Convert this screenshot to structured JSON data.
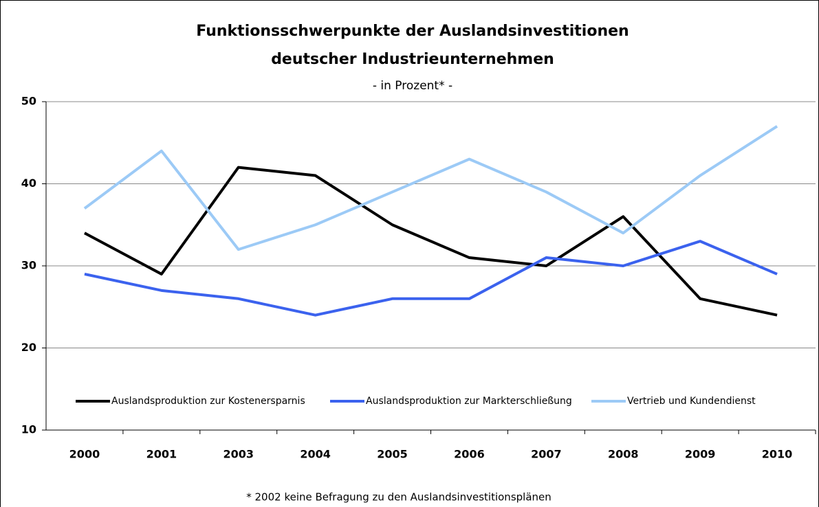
{
  "chart_data": {
    "type": "line",
    "title": [
      "Funktionsschwerpunkte der Auslandsinvestitionen",
      "deutscher Industrieunternehmen"
    ],
    "subtitle": "- in Prozent* -",
    "footnote": "* 2002 keine Befragung zu den Auslandsinvestitionsplänen",
    "categories": [
      "2000",
      "2001",
      "2003",
      "2004",
      "2005",
      "2006",
      "2007",
      "2008",
      "2009",
      "2010"
    ],
    "series": [
      {
        "name": "Auslandsproduktion zur Kostenersparnis",
        "color": "#000000",
        "values": [
          34,
          29,
          42,
          41,
          35,
          31,
          30,
          36,
          26,
          24
        ]
      },
      {
        "name": "Auslandsproduktion zur Markterschließung",
        "color": "#3b62ee",
        "values": [
          29,
          27,
          26,
          24,
          26,
          26,
          31,
          30,
          33,
          29
        ]
      },
      {
        "name": "Vertrieb und Kundendienst",
        "color": "#9ccaf6",
        "values": [
          37,
          44,
          32,
          35,
          39,
          43,
          39,
          34,
          41,
          47
        ]
      }
    ],
    "ylim": [
      10,
      50
    ],
    "yticks": [
      10,
      20,
      30,
      40,
      50
    ],
    "grid": true,
    "legend": "bottom"
  }
}
